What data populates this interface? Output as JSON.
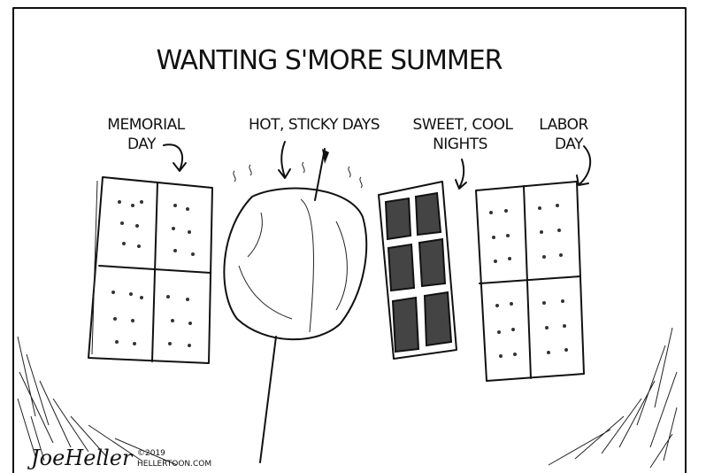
{
  "title": "WANTING S'MORE SUMMER",
  "labels": [
    {
      "lines": [
        "MEMORIAL",
        "DAY"
      ]
    },
    {
      "lines": [
        "HOT, STICKY DAYS"
      ]
    },
    {
      "lines": [
        "SWEET, COOL",
        "NIGHTS"
      ]
    },
    {
      "lines": [
        "LABOR",
        "DAY"
      ]
    }
  ],
  "signature": {
    "artist": "JoeHeller",
    "copyright": "©2019",
    "site": "HELLERTOON.COM"
  }
}
